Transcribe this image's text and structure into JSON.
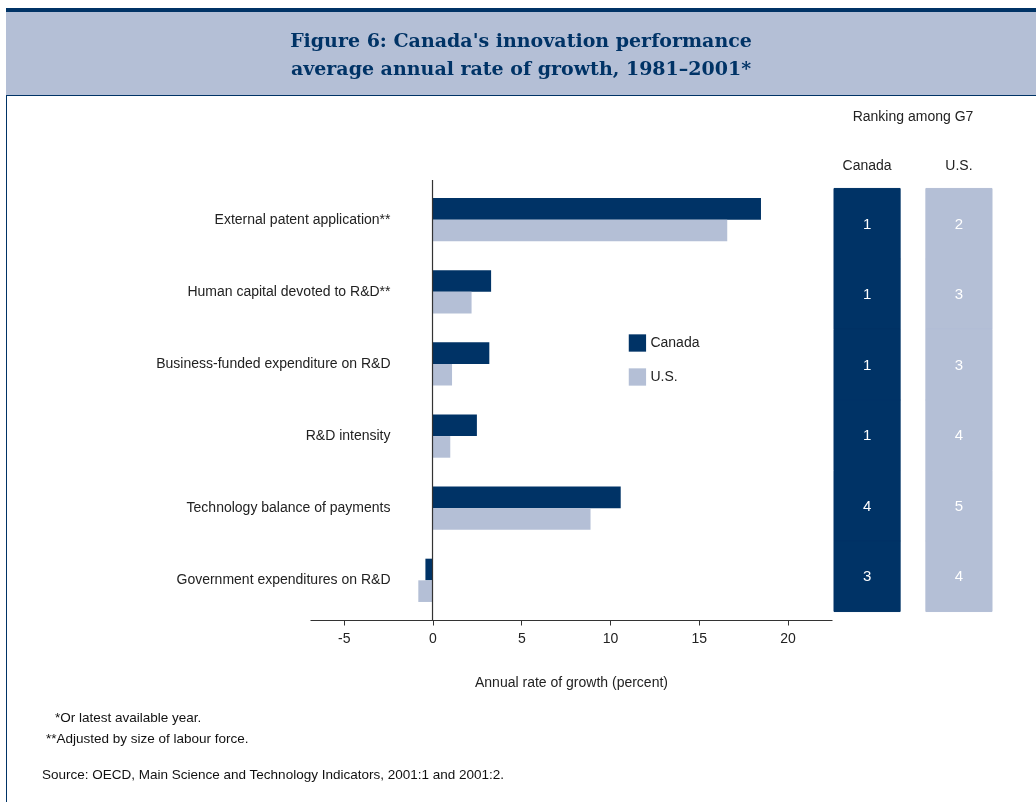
{
  "chart_data": [
    {
      "type": "bar",
      "orientation": "horizontal",
      "title": "Figure 6: Canada's innovation performance",
      "subtitle": "average annual rate of growth, 1981–2001*",
      "xlabel": "Annual rate of growth (percent)",
      "categories": [
        "External patent application**",
        "Human capital devoted to R&D**",
        "Business-funded expenditure on R&D",
        "R&D intensity",
        "Technology balance of payments",
        "Government expenditures on R&D"
      ],
      "series": [
        {
          "name": "Canada",
          "color": "#003366",
          "values": [
            18.5,
            3.3,
            3.2,
            2.5,
            10.6,
            -0.4
          ]
        },
        {
          "name": "U.S.",
          "color": "#b4bfd6",
          "values": [
            16.6,
            2.2,
            1.1,
            1.0,
            8.9,
            -0.8
          ]
        }
      ],
      "xlim": [
        -6.9,
        22.5
      ],
      "xticks": [
        -5,
        0,
        5,
        10,
        15,
        20
      ],
      "grid": false,
      "legend": "right",
      "ref_lines": [
        {
          "axis": "x",
          "value": 0
        }
      ],
      "annotations": [
        "*Or latest available year.",
        "**Adjusted by size of labour force.",
        "Source: OECD, Main Science and Technology Indicators, 2001:1 and 2001:2."
      ]
    },
    {
      "type": "heatmap",
      "title": "Ranking among G7",
      "categories": [
        "Canada",
        "U.S."
      ],
      "y_categories": [
        null,
        null,
        null,
        null,
        null,
        null
      ],
      "colors": [
        "#003366",
        "#b4bfd6"
      ],
      "data_labels": true,
      "cells": [
        [
          1,
          2
        ],
        [
          1,
          3
        ],
        [
          1,
          3
        ],
        [
          1,
          4
        ],
        [
          4,
          5
        ],
        [
          3,
          4
        ]
      ]
    }
  ]
}
